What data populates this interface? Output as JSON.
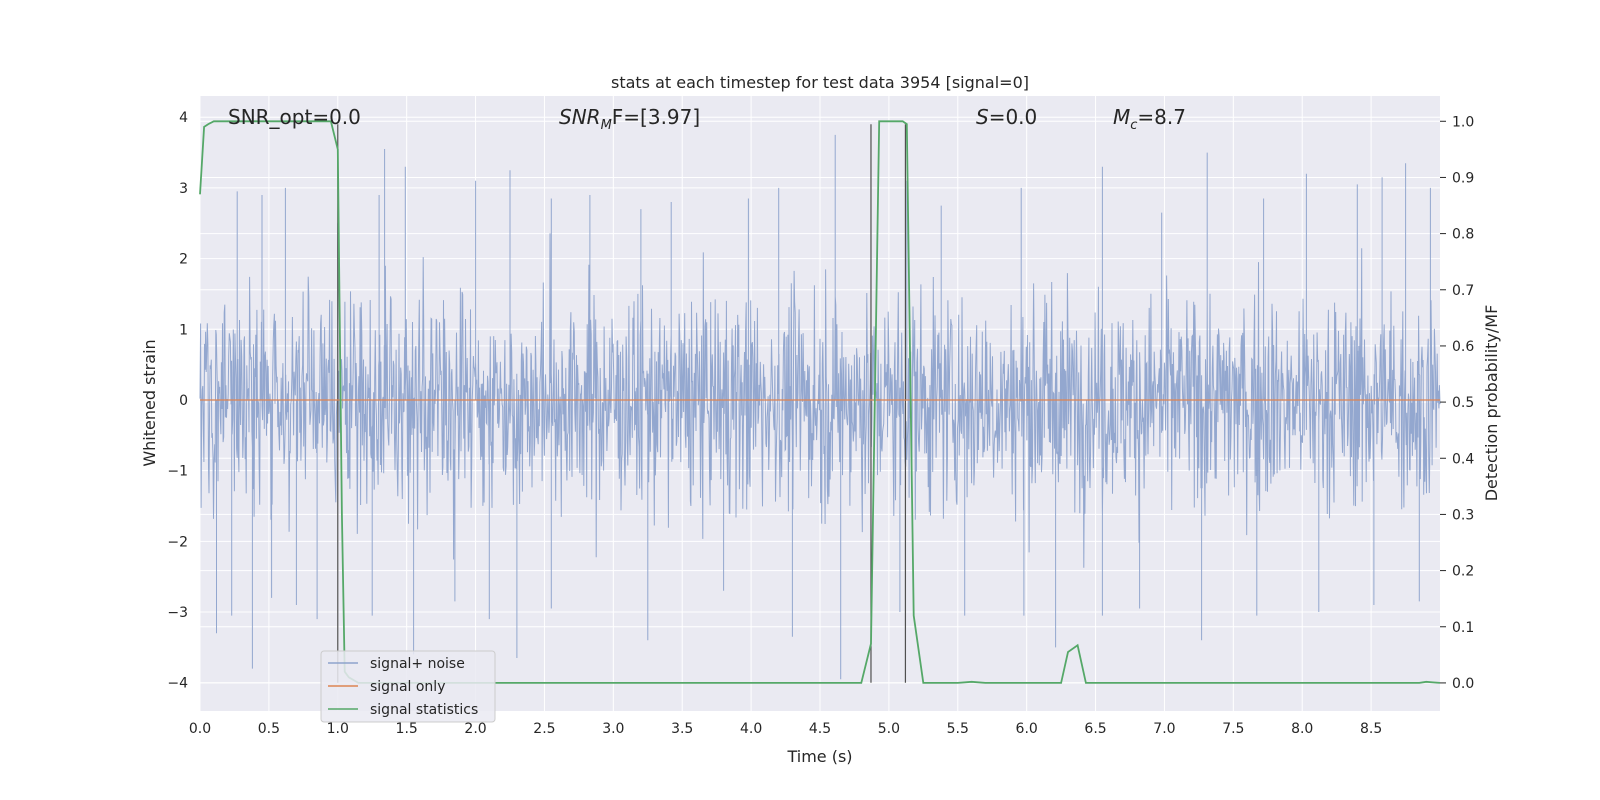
{
  "chart_data": {
    "type": "line",
    "title": "stats at each timestep for test data 3954 [signal=0]",
    "xlabel": "Time (s)",
    "ylabel": "Whitened strain",
    "y2label": "Detection probability/MF",
    "xlim": [
      0,
      9.0
    ],
    "ylim": [
      -4.4,
      4.3
    ],
    "y2lim": [
      -0.05,
      1.045
    ],
    "x_ticks": [
      "0.0",
      "0.5",
      "1.0",
      "1.5",
      "2.0",
      "2.5",
      "3.0",
      "3.5",
      "4.0",
      "4.5",
      "5.0",
      "5.5",
      "6.0",
      "6.5",
      "7.0",
      "7.5",
      "8.0",
      "8.5"
    ],
    "y_ticks": [
      "4",
      "3",
      "2",
      "1",
      "0",
      "−1",
      "−2",
      "−3",
      "−4"
    ],
    "y2_ticks": [
      "1.0",
      "0.9",
      "0.8",
      "0.7",
      "0.6",
      "0.5",
      "0.4",
      "0.3",
      "0.2",
      "0.1",
      "0.0"
    ],
    "grid": true,
    "legend_position": "lower-left",
    "annotations": {
      "snr_opt": "SNR_opt=0.0",
      "snr_mf_prefix": "SNR",
      "snr_mf_sub": "M",
      "snr_mf_rest": "F=[3.97]",
      "s_var": "S",
      "s_rest": "=0.0",
      "mc_var": "M",
      "mc_sub": "c",
      "mc_rest": "=8.7"
    },
    "series": [
      {
        "name": "signal+ noise",
        "color": "#8ea3cc",
        "description_values": "whitened noise, amplitude ~ ±2 typical, peaks to about ±3.9",
        "spikes_up": [
          [
            0.27,
            2.95
          ],
          [
            0.45,
            2.9
          ],
          [
            0.62,
            3.0
          ],
          [
            1.0,
            2.5
          ],
          [
            1.3,
            2.9
          ],
          [
            1.34,
            3.55
          ],
          [
            1.49,
            3.3
          ],
          [
            2.0,
            3.1
          ],
          [
            2.25,
            3.25
          ],
          [
            2.55,
            2.85
          ],
          [
            2.83,
            2.9
          ],
          [
            3.2,
            2.7
          ],
          [
            3.42,
            2.8
          ],
          [
            3.98,
            2.85
          ],
          [
            4.2,
            3.0
          ],
          [
            4.61,
            3.75
          ],
          [
            5.13,
            3.1
          ],
          [
            5.38,
            2.75
          ],
          [
            5.96,
            3.0
          ],
          [
            6.55,
            3.3
          ],
          [
            6.98,
            2.65
          ],
          [
            7.31,
            3.5
          ],
          [
            7.72,
            2.85
          ],
          [
            8.03,
            3.2
          ],
          [
            8.4,
            3.05
          ],
          [
            8.58,
            3.15
          ],
          [
            8.75,
            3.35
          ],
          [
            8.93,
            3.0
          ]
        ],
        "spikes_down": [
          [
            0.12,
            -3.3
          ],
          [
            0.23,
            -3.05
          ],
          [
            0.38,
            -3.8
          ],
          [
            0.52,
            -2.8
          ],
          [
            0.7,
            -2.9
          ],
          [
            0.85,
            -3.1
          ],
          [
            1.25,
            -3.05
          ],
          [
            1.55,
            -3.6
          ],
          [
            1.85,
            -2.85
          ],
          [
            2.1,
            -3.1
          ],
          [
            2.3,
            -3.65
          ],
          [
            2.55,
            -2.95
          ],
          [
            3.25,
            -3.4
          ],
          [
            3.8,
            -2.7
          ],
          [
            4.3,
            -3.35
          ],
          [
            4.65,
            -3.95
          ],
          [
            5.08,
            -3.0
          ],
          [
            5.55,
            -3.05
          ],
          [
            5.98,
            -3.05
          ],
          [
            6.21,
            -3.5
          ],
          [
            6.55,
            -3.05
          ],
          [
            6.82,
            -2.95
          ],
          [
            7.27,
            -3.4
          ],
          [
            7.67,
            -3.05
          ],
          [
            8.12,
            -3.0
          ],
          [
            8.52,
            -2.9
          ],
          [
            8.85,
            -2.85
          ]
        ]
      },
      {
        "name": "signal only",
        "color": "#dd8452",
        "x": [
          0,
          9.0
        ],
        "y": [
          0,
          0
        ]
      },
      {
        "name": "signal statistics",
        "color": "#55a868",
        "axis": "right",
        "x": [
          0.0,
          0.03,
          0.06,
          0.1,
          0.2,
          0.5,
          0.8,
          0.95,
          1.0,
          1.03,
          1.05,
          1.08,
          1.15,
          1.5,
          2.0,
          3.0,
          4.0,
          4.5,
          4.8,
          4.87,
          4.93,
          5.0,
          5.1,
          5.13,
          5.18,
          5.25,
          5.5,
          5.6,
          5.7,
          6.0,
          6.25,
          6.3,
          6.37,
          6.43,
          6.5,
          7.0,
          8.0,
          8.85,
          8.9,
          8.95,
          9.0
        ],
        "y": [
          0.87,
          0.99,
          0.995,
          1.0,
          1.0,
          1.0,
          1.0,
          1.0,
          0.95,
          0.3,
          0.02,
          0.01,
          0.0,
          0.0,
          0.0,
          0.0,
          0.0,
          0.0,
          0.0,
          0.07,
          1.0,
          1.0,
          1.0,
          0.995,
          0.12,
          0.0,
          0.0,
          0.002,
          0.0,
          0.0,
          0.0,
          0.055,
          0.067,
          0.0,
          0.0,
          0.0,
          0.0,
          0.0,
          0.002,
          0.001,
          0.0
        ]
      }
    ],
    "vertical_markers": [
      {
        "x": 1.0,
        "y_from": -4.0,
        "y_to": 3.9,
        "color": "#505050"
      },
      {
        "x": 4.87,
        "y_from": -4.0,
        "y_to": 3.9,
        "color": "#505050"
      },
      {
        "x": 5.12,
        "y_from": -4.0,
        "y_to": 3.9,
        "color": "#505050"
      }
    ]
  }
}
